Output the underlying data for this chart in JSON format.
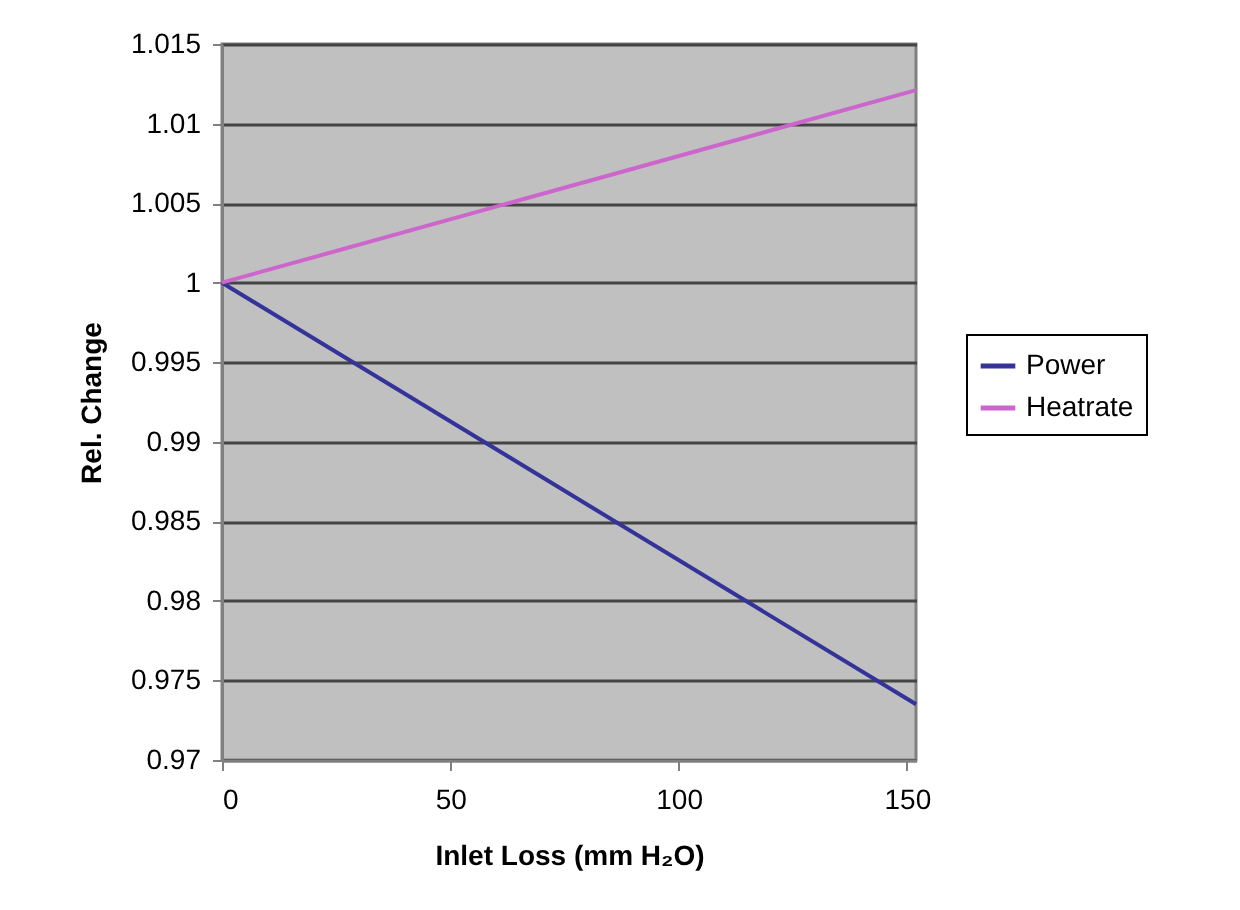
{
  "chart_data": {
    "type": "line",
    "xlabel": "Inlet Loss (mm H₂O)",
    "ylabel": "Rel. Change",
    "xlim": [
      0,
      152
    ],
    "xticks": [
      0,
      50,
      100,
      150
    ],
    "ylim": [
      0.97,
      1.015
    ],
    "yticks": [
      0.97,
      0.975,
      0.98,
      0.985,
      0.99,
      0.995,
      1,
      1.005,
      1.01,
      1.015
    ],
    "x": [
      0,
      152
    ],
    "grid": "y",
    "legend": "right",
    "marker": "none",
    "line_style": "solid",
    "series": [
      {
        "name": "Power",
        "color": "#333399",
        "values": [
          1,
          0.9735
        ]
      },
      {
        "name": "Heatrate",
        "color": "#cc66cc",
        "values": [
          1,
          1.0121
        ]
      }
    ]
  }
}
